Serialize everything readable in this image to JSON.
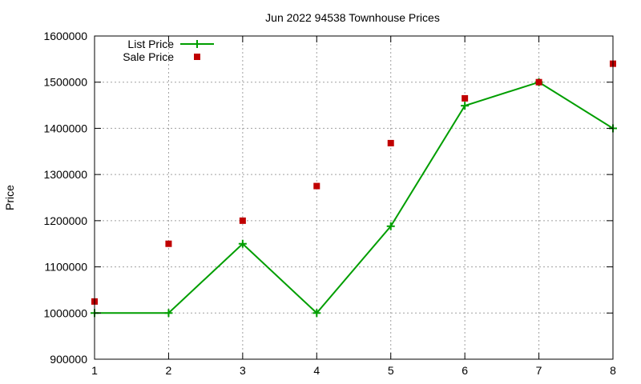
{
  "chart_data": {
    "type": "line",
    "title": "Jun 2022 94538 Townhouse Prices",
    "xlabel": "",
    "ylabel": "Price",
    "xlim": [
      1,
      8
    ],
    "ylim": [
      900000,
      1600000
    ],
    "x_ticks": [
      "1",
      "2",
      "3",
      "4",
      "5",
      "6",
      "7",
      "8"
    ],
    "y_ticks": [
      "900000",
      "1000000",
      "1100000",
      "1200000",
      "1300000",
      "1400000",
      "1500000",
      "1600000"
    ],
    "grid": true,
    "legend_position": "top-left",
    "x": [
      1,
      2,
      3,
      4,
      5,
      6,
      7,
      8
    ],
    "series": [
      {
        "name": "List Price",
        "style": "line-with-plus-markers",
        "color": "#009e00",
        "values": [
          1000000,
          1000000,
          1150000,
          1000000,
          1188000,
          1449000,
          1500000,
          1400000
        ]
      },
      {
        "name": "Sale Price",
        "style": "square-points",
        "color": "#c00000",
        "values": [
          1025000,
          1150000,
          1200000,
          1275000,
          1368000,
          1465000,
          1500000,
          1540000
        ]
      }
    ]
  }
}
